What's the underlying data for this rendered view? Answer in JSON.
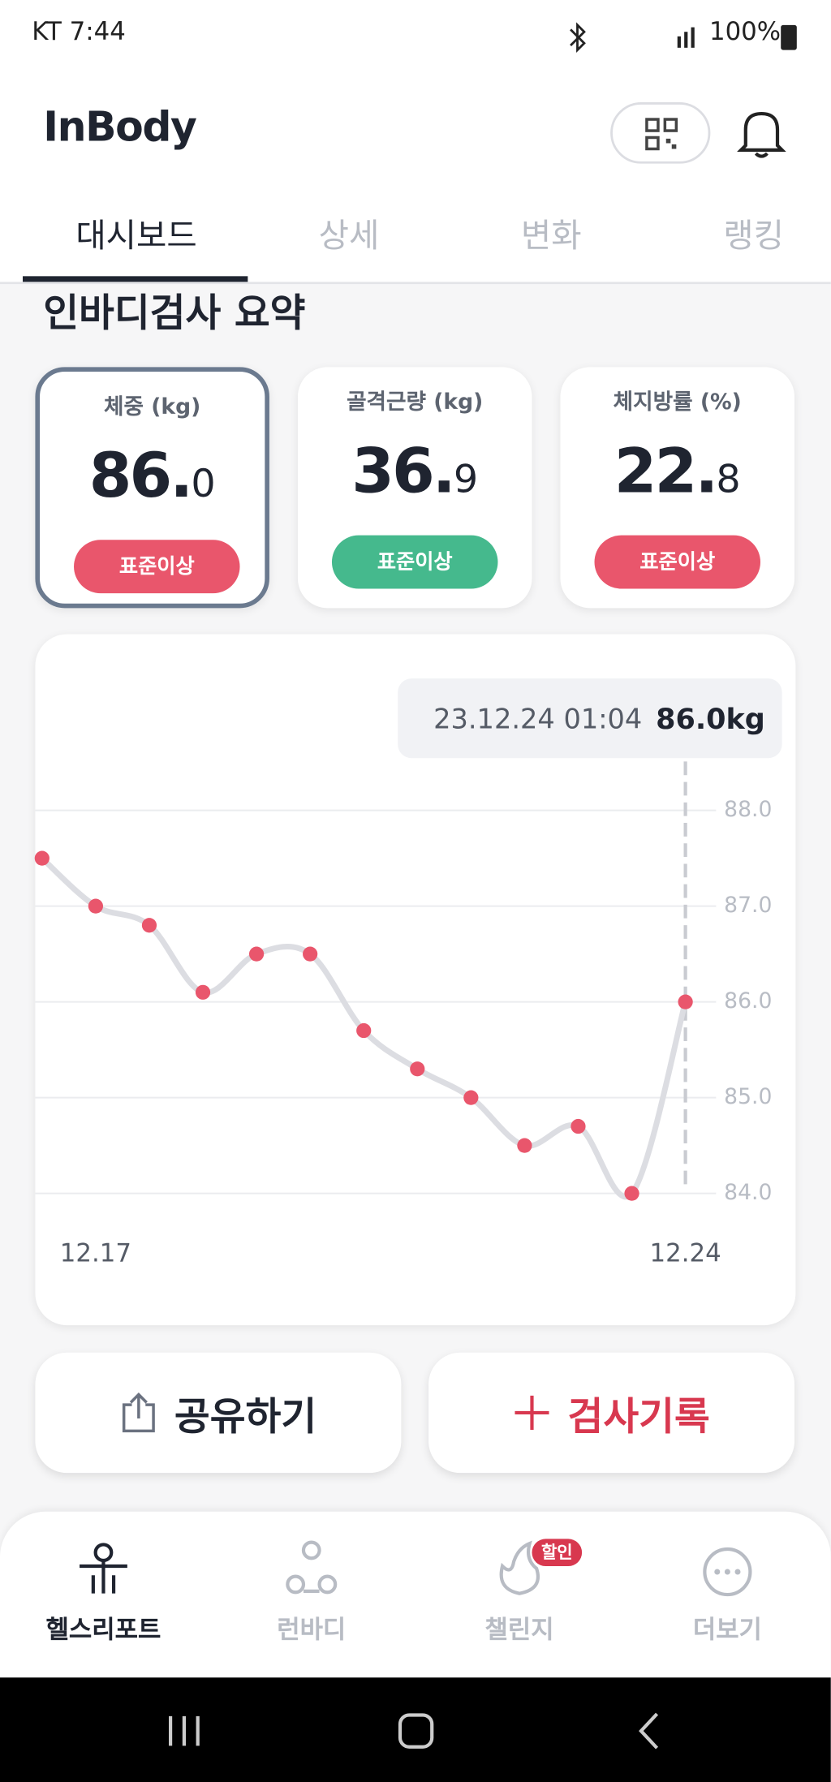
{
  "status_bar": {
    "carrier_time": "KT 7:44",
    "battery": "100%"
  },
  "header": {
    "logo": "InBody"
  },
  "tabs": [
    "대시보드",
    "상세",
    "변화",
    "랭킹"
  ],
  "section_title": "인바디검사 요약",
  "summary_cards": [
    {
      "label": "체중 (kg)",
      "value_whole": "86.",
      "value_fraction": "0",
      "status": "표준이상",
      "status_color": "#e9566c"
    },
    {
      "label": "골격근량 (kg)",
      "value_whole": "36.",
      "value_fraction": "9",
      "status": "표준이상",
      "status_color": "#45b98d"
    },
    {
      "label": "체지방률 (%)",
      "value_whole": "22.",
      "value_fraction": "8",
      "status": "표준이상",
      "status_color": "#e9566c"
    }
  ],
  "chart_data": {
    "type": "line",
    "categories": [
      null,
      "12.17",
      null,
      null,
      null,
      null,
      null,
      null,
      null,
      null,
      null,
      null,
      "12.24"
    ],
    "values": [
      87.5,
      87.0,
      86.8,
      86.1,
      86.5,
      86.5,
      85.7,
      85.3,
      85.0,
      84.5,
      84.7,
      84.0,
      86.0
    ],
    "line_color": "#dcdde2",
    "point_color": "#e9566c",
    "ylim": [
      84,
      88
    ],
    "yticks": [
      {
        "value": 84,
        "label": "84.0"
      },
      {
        "value": 85,
        "label": "85.0"
      },
      {
        "value": 86,
        "label": "86.0"
      },
      {
        "value": 87,
        "label": "87.0"
      },
      {
        "value": 88,
        "label": "88.0"
      }
    ],
    "grid": true,
    "annotation": {
      "time": "23.12.24 01:04",
      "value": "86.0kg"
    }
  },
  "actions": [
    "공유하기",
    "검사기록"
  ],
  "bottom_nav": {
    "items": [
      "헬스리포트",
      "런바디",
      "챌린지",
      "더보기"
    ],
    "badge": "할인"
  }
}
